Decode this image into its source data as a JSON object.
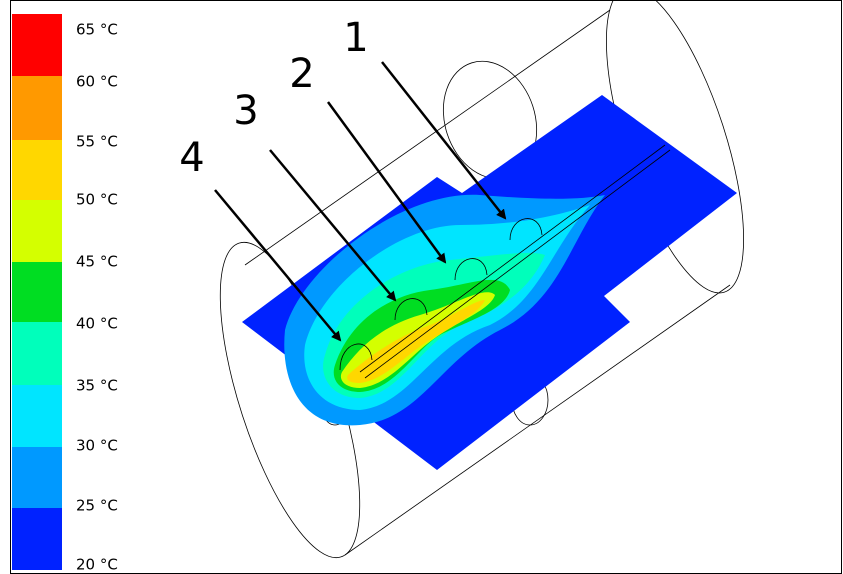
{
  "legend": {
    "labels": [
      "65 °C",
      "60 °C",
      "55 °C",
      "50 °C",
      "45 °C",
      "40 °C",
      "35 °C",
      "30 °C",
      "25 °C",
      "20 °C"
    ]
  },
  "callouts": [
    "1",
    "2",
    "3",
    "4"
  ]
}
